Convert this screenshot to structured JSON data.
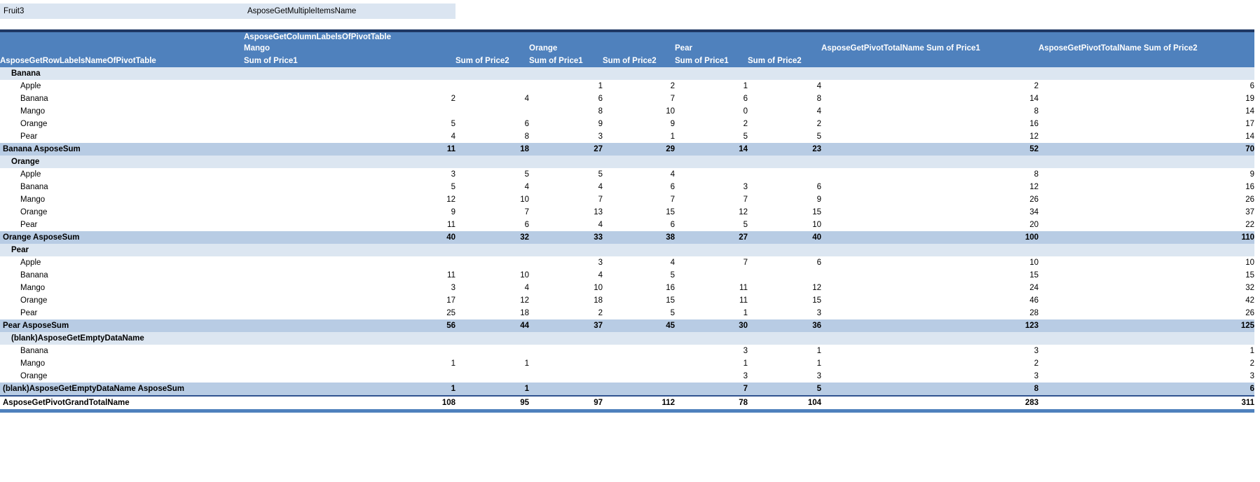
{
  "filter_bar": {
    "field_label": "Fruit3",
    "selected_value": "AsposeGetMultipleItemsName"
  },
  "pivot": {
    "column_labels_title": "AsposeGetColumnLabelsOfPivotTable",
    "row_labels_title": "AsposeGetRowLabelsNameOfPivotTable",
    "column_groups": [
      "Mango",
      "Orange",
      "Pear"
    ],
    "sub_headers": [
      "Sum of Price1",
      "Sum of Price2"
    ],
    "total_headers": [
      "AsposeGetPivotTotalName Sum of Price1",
      "AsposeGetPivotTotalName Sum of Price2"
    ],
    "rows": [
      {
        "type": "group",
        "label": "Banana",
        "values": [
          "",
          "",
          "",
          "",
          "",
          "",
          "",
          ""
        ]
      },
      {
        "type": "item",
        "label": "Apple",
        "values": [
          "",
          "",
          "1",
          "2",
          "1",
          "4",
          "2",
          "6"
        ]
      },
      {
        "type": "item",
        "label": "Banana",
        "values": [
          "2",
          "4",
          "6",
          "7",
          "6",
          "8",
          "14",
          "19"
        ]
      },
      {
        "type": "item",
        "label": "Mango",
        "values": [
          "",
          "",
          "8",
          "10",
          "0",
          "4",
          "8",
          "14"
        ]
      },
      {
        "type": "item",
        "label": "Orange",
        "values": [
          "5",
          "6",
          "9",
          "9",
          "2",
          "2",
          "16",
          "17"
        ]
      },
      {
        "type": "item",
        "label": "Pear",
        "values": [
          "4",
          "8",
          "3",
          "1",
          "5",
          "5",
          "12",
          "14"
        ]
      },
      {
        "type": "subtotal",
        "label": "Banana AsposeSum",
        "values": [
          "11",
          "18",
          "27",
          "29",
          "14",
          "23",
          "52",
          "70"
        ]
      },
      {
        "type": "group",
        "label": "Orange",
        "values": [
          "",
          "",
          "",
          "",
          "",
          "",
          "",
          ""
        ]
      },
      {
        "type": "item",
        "label": "Apple",
        "values": [
          "3",
          "5",
          "5",
          "4",
          "",
          "",
          "8",
          "9"
        ]
      },
      {
        "type": "item",
        "label": "Banana",
        "values": [
          "5",
          "4",
          "4",
          "6",
          "3",
          "6",
          "12",
          "16"
        ]
      },
      {
        "type": "item",
        "label": "Mango",
        "values": [
          "12",
          "10",
          "7",
          "7",
          "7",
          "9",
          "26",
          "26"
        ]
      },
      {
        "type": "item",
        "label": "Orange",
        "values": [
          "9",
          "7",
          "13",
          "15",
          "12",
          "15",
          "34",
          "37"
        ]
      },
      {
        "type": "item",
        "label": "Pear",
        "values": [
          "11",
          "6",
          "4",
          "6",
          "5",
          "10",
          "20",
          "22"
        ]
      },
      {
        "type": "subtotal",
        "label": "Orange AsposeSum",
        "values": [
          "40",
          "32",
          "33",
          "38",
          "27",
          "40",
          "100",
          "110"
        ]
      },
      {
        "type": "group",
        "label": "Pear",
        "values": [
          "",
          "",
          "",
          "",
          "",
          "",
          "",
          ""
        ]
      },
      {
        "type": "item",
        "label": "Apple",
        "values": [
          "",
          "",
          "3",
          "4",
          "7",
          "6",
          "10",
          "10"
        ]
      },
      {
        "type": "item",
        "label": "Banana",
        "values": [
          "11",
          "10",
          "4",
          "5",
          "",
          "",
          "15",
          "15"
        ]
      },
      {
        "type": "item",
        "label": "Mango",
        "values": [
          "3",
          "4",
          "10",
          "16",
          "11",
          "12",
          "24",
          "32"
        ]
      },
      {
        "type": "item",
        "label": "Orange",
        "values": [
          "17",
          "12",
          "18",
          "15",
          "11",
          "15",
          "46",
          "42"
        ]
      },
      {
        "type": "item",
        "label": "Pear",
        "values": [
          "25",
          "18",
          "2",
          "5",
          "1",
          "3",
          "28",
          "26"
        ]
      },
      {
        "type": "subtotal",
        "label": "Pear AsposeSum",
        "values": [
          "56",
          "44",
          "37",
          "45",
          "30",
          "36",
          "123",
          "125"
        ]
      },
      {
        "type": "group",
        "label": "(blank)AsposeGetEmptyDataName",
        "values": [
          "",
          "",
          "",
          "",
          "",
          "",
          "",
          ""
        ]
      },
      {
        "type": "item",
        "label": "Banana",
        "values": [
          "",
          "",
          "",
          "",
          "3",
          "1",
          "3",
          "1"
        ]
      },
      {
        "type": "item",
        "label": "Mango",
        "values": [
          "1",
          "1",
          "",
          "",
          "1",
          "1",
          "2",
          "2"
        ]
      },
      {
        "type": "item",
        "label": "Orange",
        "values": [
          "",
          "",
          "",
          "",
          "3",
          "3",
          "3",
          "3"
        ]
      },
      {
        "type": "subtotal",
        "label": "(blank)AsposeGetEmptyDataName AsposeSum",
        "values": [
          "1",
          "1",
          "",
          "",
          "7",
          "5",
          "8",
          "6"
        ]
      },
      {
        "type": "grand",
        "label": "AsposeGetPivotGrandTotalName",
        "values": [
          "108",
          "95",
          "97",
          "112",
          "78",
          "104",
          "283",
          "311"
        ]
      }
    ],
    "colors": {
      "header_bg": "#4f81bd",
      "header_text": "#ffffff",
      "header_top_border": "#1f3864",
      "filter_bg": "#dbe5f1",
      "group_row_bg": "#dce6f1",
      "subtotal_row_bg": "#b8cce4",
      "grand_bottom_border": "#4f81bd"
    }
  }
}
